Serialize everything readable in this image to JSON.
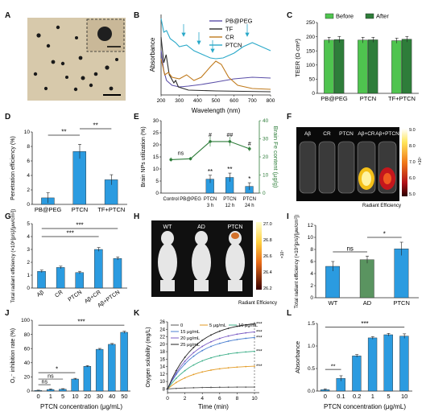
{
  "labels": {
    "A": "A",
    "B": "B",
    "C": "C",
    "D": "D",
    "E": "E",
    "F": "F",
    "G": "G",
    "H": "H",
    "I": "I",
    "J": "J",
    "K": "K",
    "L": "L"
  },
  "colors": {
    "blue": "#2b9be0",
    "green_light": "#4fc44f",
    "green_dark": "#2e7d3a",
    "cyan": "#1fa3c8",
    "brown": "#a86c1a",
    "purple": "#6a4fa8"
  },
  "chart_data": [
    {
      "panel": "B",
      "type": "line",
      "xlabel": "Wavelength (nm)",
      "ylabel": "Absorbance",
      "xlim": [
        200,
        800
      ],
      "xticks": [
        "200",
        "300",
        "400",
        "500",
        "600",
        "700",
        "800"
      ],
      "legend": [
        "PB@PEG",
        "TF",
        "CR",
        "PTCN"
      ],
      "series": [
        {
          "name": "PB@PEG",
          "color": "#5a4ea8",
          "points": [
            [
              200,
              0.55
            ],
            [
              215,
              0.3
            ],
            [
              230,
              0.18
            ],
            [
              260,
              0.12
            ],
            [
              300,
              0.1
            ],
            [
              350,
              0.11
            ],
            [
              420,
              0.13
            ],
            [
              500,
              0.16
            ],
            [
              600,
              0.2
            ],
            [
              700,
              0.22
            ],
            [
              800,
              0.21
            ]
          ]
        },
        {
          "name": "TF",
          "color": "#2c2c2c",
          "points": [
            [
              200,
              0.72
            ],
            [
              215,
              0.4
            ],
            [
              228,
              0.5
            ],
            [
              245,
              0.25
            ],
            [
              270,
              0.15
            ],
            [
              280,
              0.18
            ],
            [
              295,
              0.1
            ],
            [
              350,
              0.06
            ],
            [
              500,
              0.05
            ],
            [
              800,
              0.04
            ]
          ]
        },
        {
          "name": "CR",
          "color": "#c07a1c",
          "points": [
            [
              200,
              0.45
            ],
            [
              220,
              0.25
            ],
            [
              240,
              0.28
            ],
            [
              260,
              0.22
            ],
            [
              300,
              0.2
            ],
            [
              340,
              0.25
            ],
            [
              380,
              0.18
            ],
            [
              420,
              0.22
            ],
            [
              470,
              0.35
            ],
            [
              500,
              0.42
            ],
            [
              530,
              0.38
            ],
            [
              570,
              0.22
            ],
            [
              620,
              0.12
            ],
            [
              700,
              0.08
            ],
            [
              800,
              0.07
            ]
          ]
        },
        {
          "name": "PTCN",
          "color": "#2aa9c9",
          "points": [
            [
              200,
              0.95
            ],
            [
              215,
              0.78
            ],
            [
              230,
              0.8
            ],
            [
              250,
              0.7
            ],
            [
              280,
              0.65
            ],
            [
              300,
              0.6
            ],
            [
              340,
              0.62
            ],
            [
              380,
              0.55
            ],
            [
              430,
              0.5
            ],
            [
              470,
              0.46
            ],
            [
              500,
              0.45
            ],
            [
              540,
              0.46
            ],
            [
              600,
              0.52
            ],
            [
              650,
              0.6
            ],
            [
              700,
              0.65
            ],
            [
              750,
              0.6
            ],
            [
              800,
              0.55
            ]
          ]
        }
      ]
    },
    {
      "panel": "C",
      "type": "bar",
      "ylabel": "TEER (Ω·cm²)",
      "ylim": [
        0,
        250
      ],
      "yticks": [
        "0",
        "50",
        "100",
        "150",
        "200",
        "250"
      ],
      "categories": [
        "PB@PEG",
        "PTCN",
        "TF+PTCN"
      ],
      "series": [
        {
          "name": "Before",
          "values": [
            188,
            188,
            186
          ],
          "errors": [
            10,
            10,
            9
          ]
        },
        {
          "name": "After",
          "values": [
            190,
            189,
            191
          ],
          "errors": [
            11,
            9,
            10
          ]
        }
      ]
    },
    {
      "panel": "D",
      "type": "bar",
      "ylabel": "Penetration efficiency (%)",
      "ylim": [
        0,
        10
      ],
      "yticks": [
        "0",
        "2",
        "4",
        "6",
        "8",
        "10"
      ],
      "categories": [
        "PB@PEG",
        "PTCN",
        "TF+PTCN"
      ],
      "values": [
        0.9,
        7.3,
        3.4
      ],
      "errors": [
        0.7,
        1.0,
        0.7
      ],
      "annotations": [
        "**",
        "**"
      ]
    },
    {
      "panel": "E",
      "type": "bar",
      "ylabel": "Brain NPs utilization (%)",
      "y2label": "Brain Fe content (μg/g)",
      "ylim": [
        0,
        30
      ],
      "y2lim": [
        0,
        40
      ],
      "yticks": [
        "0",
        "5",
        "10",
        "15",
        "20",
        "25",
        "30"
      ],
      "y2ticks": [
        "0",
        "10",
        "20",
        "30",
        "40"
      ],
      "categories": [
        "Control",
        "PB@PEG",
        "PTCN\n3 h",
        "PTCN\n12 h",
        "PTCN\n24 h"
      ],
      "values": [
        0,
        0,
        5.8,
        6.5,
        2.8
      ],
      "errors": [
        0,
        0,
        1.6,
        1.8,
        1.5
      ],
      "line": {
        "values": [
          18.5,
          19,
          28.5,
          28.5,
          24.5
        ],
        "errors": [
          1.2,
          1,
          2.8,
          2.5,
          1.4
        ]
      },
      "annotations": [
        "ns",
        "#",
        "##",
        "#",
        "**",
        "**",
        "*"
      ]
    },
    {
      "panel": "G",
      "type": "bar",
      "ylabel": "Total radiant efficiency (×10⁸[p/s]/[μw/cm²])",
      "ylim": [
        0,
        5
      ],
      "yticks": [
        "0",
        "1",
        "2",
        "3",
        "4",
        "5"
      ],
      "categories": [
        "Aβ",
        "CR",
        "PTCN",
        "Aβ+CR",
        "Aβ+PTCN"
      ],
      "values": [
        1.3,
        1.6,
        1.2,
        3.0,
        2.3
      ],
      "errors": [
        0.1,
        0.1,
        0.1,
        0.15,
        0.12
      ],
      "annotations": [
        "***",
        "***"
      ]
    },
    {
      "panel": "I",
      "type": "bar",
      "ylabel": "Total radiant efficiency (×10⁷[p/s]/[μw/cm²])",
      "ylim": [
        0,
        12
      ],
      "yticks": [
        "0",
        "2",
        "4",
        "6",
        "8",
        "10",
        "12"
      ],
      "categories": [
        "WT",
        "AD",
        "PTCN"
      ],
      "values": [
        5.2,
        6.3,
        8.1
      ],
      "errors": [
        0.8,
        0.6,
        1.1
      ],
      "annotations": [
        "ns",
        "*"
      ]
    },
    {
      "panel": "J",
      "type": "bar",
      "xlabel": "PTCN concentration (μg/mL)",
      "ylabel": "O₂⁻ inhibition rate (%)",
      "ylim": [
        0,
        100
      ],
      "yticks": [
        "0",
        "20",
        "40",
        "60",
        "80",
        "100"
      ],
      "categories": [
        "0",
        "1",
        "5",
        "10",
        "20",
        "30",
        "40",
        "50"
      ],
      "values": [
        0.8,
        2.2,
        2.6,
        17,
        35,
        59,
        66,
        83
      ],
      "errors": [
        0.5,
        0.8,
        0.8,
        1,
        1,
        1.2,
        1.2,
        1.5
      ],
      "annotations": [
        "ns",
        "ns",
        "*",
        "***"
      ]
    },
    {
      "panel": "K",
      "type": "line",
      "xlabel": "Time (min)",
      "ylabel": "Oxygen solubility (mg/L)",
      "xlim": [
        0,
        10
      ],
      "ylim": [
        7,
        26
      ],
      "xticks": [
        "0",
        "2",
        "4",
        "6",
        "8",
        "10"
      ],
      "yticks": [
        "8",
        "10",
        "12",
        "14",
        "16",
        "18",
        "20",
        "22",
        "24",
        "26"
      ],
      "legend": [
        "0",
        "5 μg/mL",
        "10 μg/mL",
        "15 μg/mL",
        "20 μg/mL",
        "25 μg/mL"
      ],
      "series": [
        {
          "name": "0",
          "color": "#555555",
          "final": 8.5,
          "points": [
            [
              0,
              8
            ],
            [
              10,
              8.5
            ]
          ]
        },
        {
          "name": "5 μg/mL",
          "color": "#e39a22",
          "final": 14.1,
          "points": [
            [
              0,
              8
            ],
            [
              10,
              14.1
            ]
          ]
        },
        {
          "name": "10 μg/mL",
          "color": "#3fb08a",
          "final": 18.1,
          "points": [
            [
              0,
              8
            ],
            [
              10,
              18.1
            ]
          ]
        },
        {
          "name": "15 μg/mL",
          "color": "#4a7fd0",
          "final": 21.8,
          "points": [
            [
              0,
              8
            ],
            [
              10,
              21.8
            ]
          ]
        },
        {
          "name": "20 μg/mL",
          "color": "#7b5cc4",
          "final": 23.3,
          "points": [
            [
              0,
              8
            ],
            [
              10,
              23.3
            ]
          ]
        },
        {
          "name": "25 μg/mL",
          "color": "#222222",
          "final": 25.5,
          "points": [
            [
              0,
              8
            ],
            [
              10,
              25.5
            ]
          ]
        }
      ],
      "annotations": [
        "***",
        "***",
        "***",
        "***",
        "***"
      ]
    },
    {
      "panel": "L",
      "type": "bar",
      "xlabel": "PTCN concentration (μg/mL)",
      "ylabel": "Absorbance",
      "ylim": [
        0,
        1.5
      ],
      "yticks": [
        "0.0",
        "0.5",
        "1.0",
        "1.5"
      ],
      "categories": [
        "0",
        "0.1",
        "0.2",
        "1",
        "5",
        "10"
      ],
      "values": [
        0.03,
        0.28,
        0.78,
        1.18,
        1.25,
        1.22
      ],
      "errors": [
        0.02,
        0.06,
        0.03,
        0.03,
        0.03,
        0.05
      ],
      "annotations": [
        "**",
        "***"
      ]
    }
  ],
  "panel_F": {
    "columns": [
      "Aβ",
      "CR",
      "PTCN",
      "Aβ+CR",
      "Aβ+PTCN"
    ],
    "colorbar": {
      "ticks": [
        "9.0",
        "8.0",
        "7.0",
        "6.0",
        "5.0"
      ],
      "exponent": "×10⁷",
      "title": "Radiant Efficiency"
    }
  },
  "panel_H": {
    "labels": [
      "WT",
      "AD",
      "PTCN"
    ],
    "colorbar": {
      "ticks": [
        "27.0",
        "26.8",
        "26.6",
        "26.4",
        "26.2"
      ],
      "exponent": "×10⁷",
      "title": "Radiant Efficiency"
    }
  }
}
